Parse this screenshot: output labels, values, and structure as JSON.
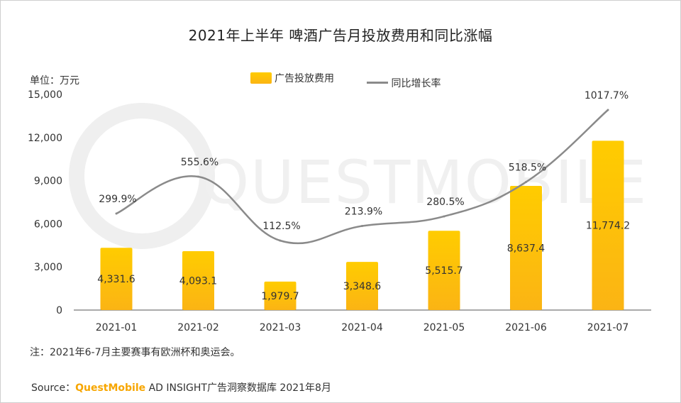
{
  "chart_data": {
    "type": "bar",
    "title": "2021年上半年 啤酒广告月投放费用和同比涨幅",
    "unit_label": "单位：万元",
    "categories": [
      "2021-01",
      "2021-02",
      "2021-03",
      "2021-04",
      "2021-05",
      "2021-06",
      "2021-07"
    ],
    "ylim": [
      0,
      15000
    ],
    "yticks": [
      "0",
      "3,000",
      "6,000",
      "9,000",
      "12,000",
      "15,000"
    ],
    "series": [
      {
        "name": "广告投放费用",
        "type": "bar",
        "values": [
          4331.6,
          4093.1,
          1979.7,
          3348.6,
          5515.7,
          8637.4,
          11774.2
        ],
        "labels": [
          "4,331.6",
          "4,093.1",
          "1,979.7",
          "3,348.6",
          "5,515.7",
          "8,637.4",
          "11,774.2"
        ],
        "color_top": "#ffcc00",
        "color_bottom": "#fbb414"
      },
      {
        "name": "同比增长率",
        "type": "line",
        "values": [
          299.9,
          555.6,
          112.5,
          213.9,
          280.5,
          518.5,
          1017.7
        ],
        "labels": [
          "299.9%",
          "555.6%",
          "112.5%",
          "213.9%",
          "280.5%",
          "518.5%",
          "1017.7%"
        ],
        "color": "#8a8a8a"
      }
    ],
    "grid": false,
    "legend_position": "top-center"
  },
  "note": "注：2021年6-7月主要赛事有欧洲杯和奥运会。",
  "source": {
    "prefix": "Source：",
    "brand": "QuestMobile",
    "suffix": " AD INSIGHT广告洞察数据库 2021年8月"
  },
  "watermark": "QUESTMOBILE"
}
